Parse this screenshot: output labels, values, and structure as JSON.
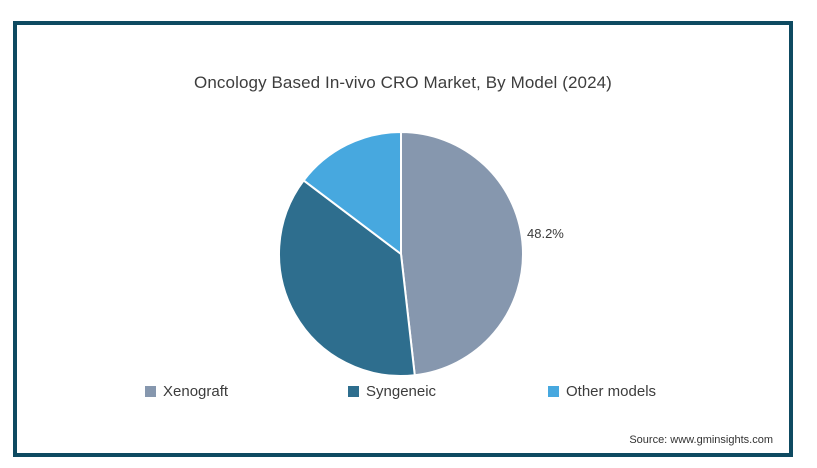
{
  "chart_data": {
    "type": "pie",
    "title": "Oncology Based In-vivo CRO Market, By Model (2024)",
    "direction": "clockwise",
    "start_angle_deg": 0,
    "legend_position": "bottom",
    "slices": [
      {
        "label": "Xenograft",
        "value": 48.2,
        "color": "#8697ae",
        "data_label": "48.2%"
      },
      {
        "label": "Syngeneic",
        "value": 37.1,
        "color": "#2e6e8e",
        "data_label": ""
      },
      {
        "label": "Other models",
        "value": 14.7,
        "color": "#47a8df",
        "data_label": ""
      }
    ],
    "source": "Source: www.gminsights.com"
  },
  "colors": {
    "frame_border": "#0e4a61",
    "background": "#ffffff",
    "title_text": "#3d3d3d",
    "slice_separator": "#ffffff"
  }
}
